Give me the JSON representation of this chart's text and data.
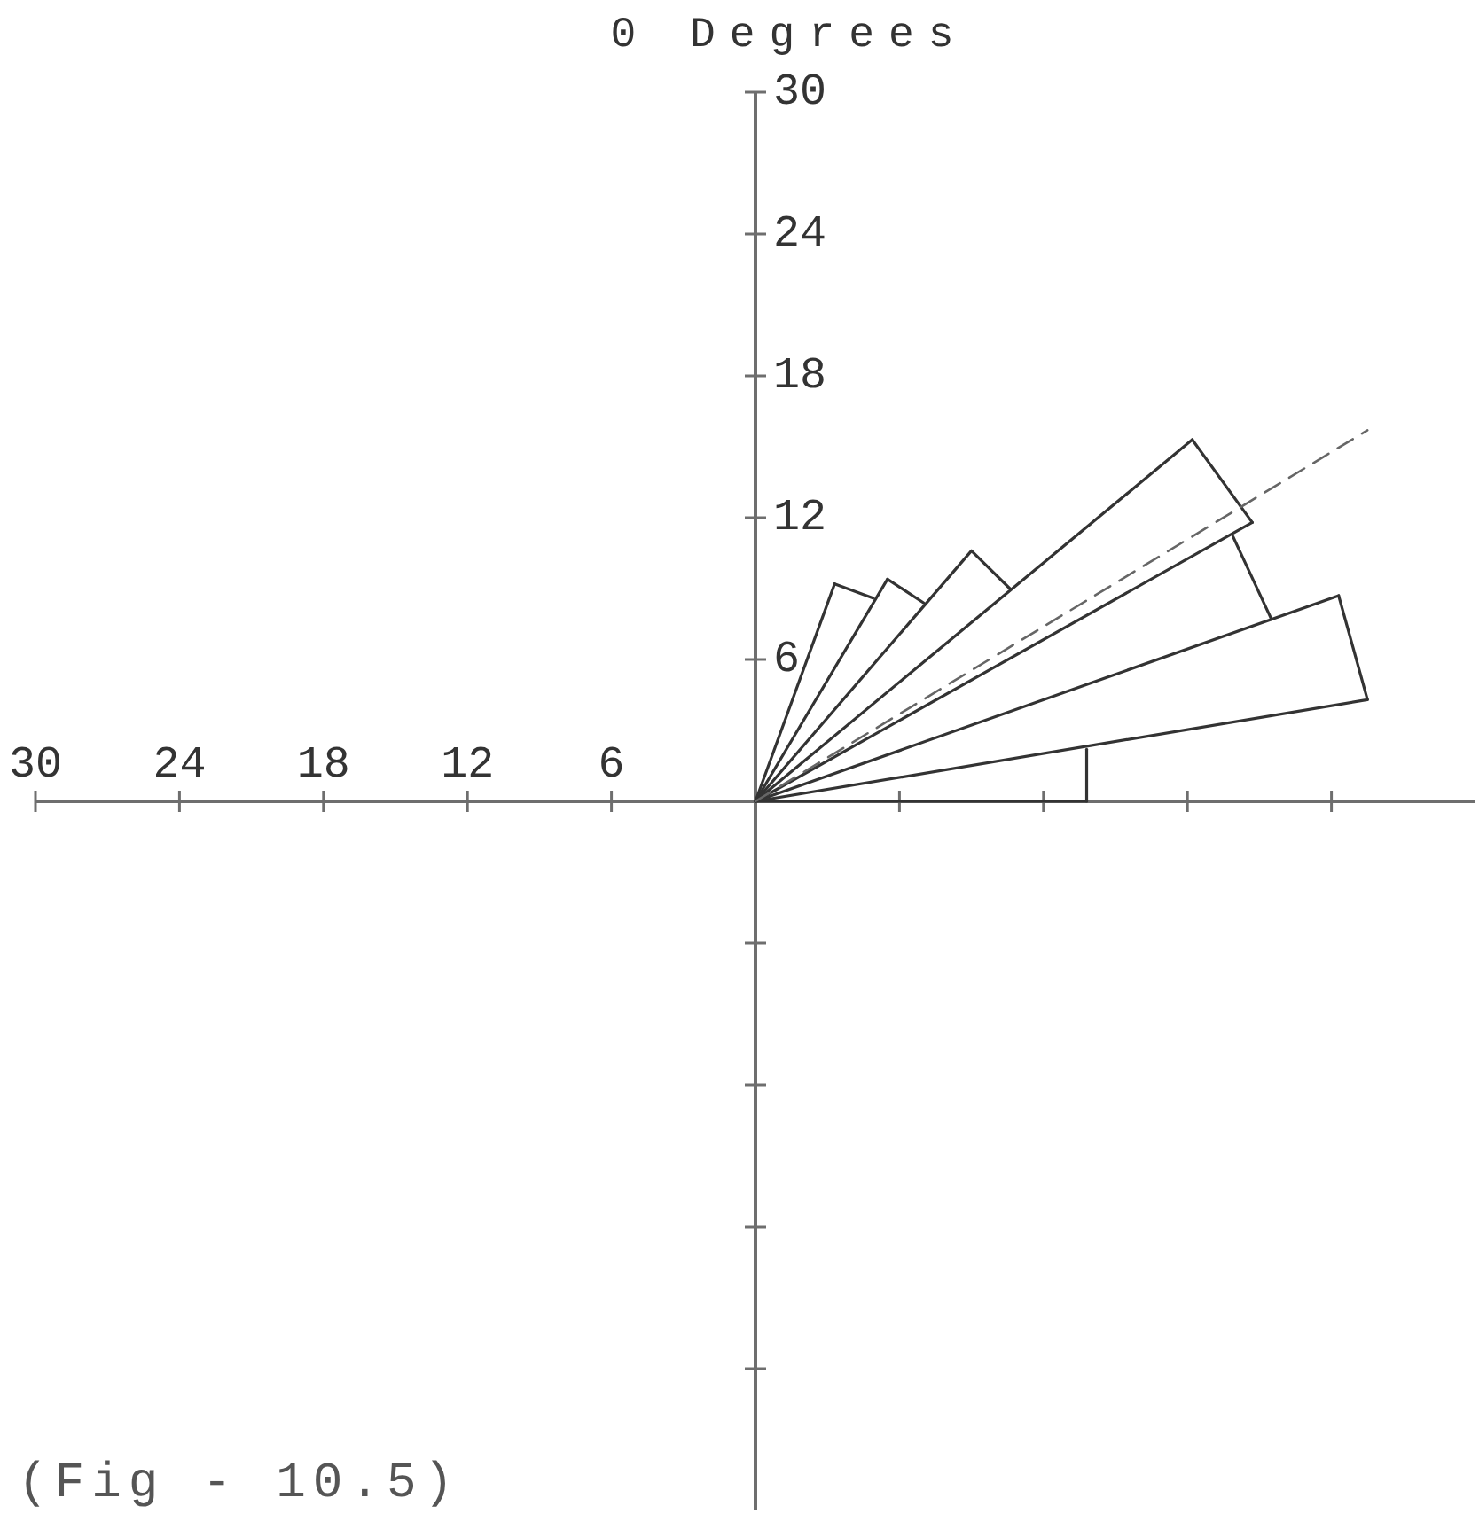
{
  "chart_data": {
    "type": "line",
    "ylabel": "0 Degrees",
    "annotations": [
      "(Fig - 10.5)"
    ],
    "xlim": [
      -30,
      30
    ],
    "ylim": [
      -30,
      30
    ],
    "xticks": [
      {
        "value": -30,
        "label": "30"
      },
      {
        "value": -24,
        "label": "24"
      },
      {
        "value": -18,
        "label": "18"
      },
      {
        "value": -12,
        "label": "12"
      },
      {
        "value": -6,
        "label": "6"
      },
      {
        "value": 6,
        "label": null
      },
      {
        "value": 12,
        "label": null
      },
      {
        "value": 18,
        "label": null
      },
      {
        "value": 24,
        "label": null
      }
    ],
    "yticks": [
      {
        "value": -24,
        "label": null
      },
      {
        "value": -18,
        "label": null
      },
      {
        "value": -12,
        "label": null
      },
      {
        "value": -6,
        "label": null
      },
      6,
      12,
      18,
      24,
      30
    ],
    "series": [
      {
        "color": "#333333",
        "x": [
          0,
          3.3
        ],
        "values": [
          0,
          9.2
        ]
      },
      {
        "color": "#333333",
        "x": [
          0,
          5.5
        ],
        "values": [
          0,
          9.4
        ]
      },
      {
        "color": "#333333",
        "x": [
          0,
          9.0
        ],
        "values": [
          0,
          10.6
        ]
      },
      {
        "color": "#333333",
        "x": [
          0,
          18.2
        ],
        "values": [
          0,
          15.3
        ]
      },
      {
        "color": "#333333",
        "x": [
          0,
          20.7
        ],
        "values": [
          0,
          11.8
        ]
      },
      {
        "color": "#333333",
        "x": [
          0,
          24.3
        ],
        "values": [
          0,
          8.7
        ]
      },
      {
        "color": "#333333",
        "x": [
          0,
          25.5
        ],
        "values": [
          0,
          4.3
        ]
      },
      {
        "color": "#333333",
        "x": [
          0,
          13.8
        ],
        "values": [
          0,
          0
        ]
      },
      {
        "color": "#333333",
        "x": [
          3.3,
          4.9
        ],
        "values": [
          9.2,
          8.6
        ]
      },
      {
        "color": "#333333",
        "x": [
          5.5,
          7.0
        ],
        "values": [
          9.4,
          8.4
        ]
      },
      {
        "color": "#333333",
        "x": [
          9.0,
          10.6
        ],
        "values": [
          10.6,
          9.0
        ]
      },
      {
        "color": "#333333",
        "x": [
          18.2,
          20.7
        ],
        "values": [
          15.3,
          11.8
        ]
      },
      {
        "color": "#333333",
        "x": [
          19.9,
          21.5
        ],
        "values": [
          11.2,
          7.7
        ]
      },
      {
        "color": "#333333",
        "x": [
          24.3,
          25.5
        ],
        "values": [
          8.7,
          4.3
        ]
      },
      {
        "color": "#333333",
        "x": [
          13.8,
          13.8
        ],
        "values": [
          2.2,
          0
        ]
      },
      {
        "color": "#666666",
        "x": [
          0,
          25.5
        ],
        "values": [
          0,
          15.7
        ],
        "line_style": "dashed"
      }
    ]
  }
}
